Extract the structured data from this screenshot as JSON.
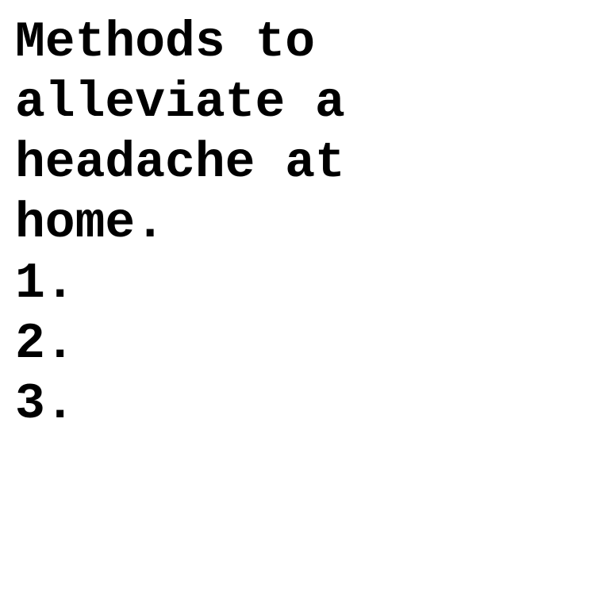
{
  "document": {
    "title_lines": [
      "Methods to",
      "alleviate a",
      "headache at",
      "home."
    ],
    "list_items": [
      "1.",
      "2.",
      "3."
    ],
    "colors": {
      "text": "#000000",
      "background": "#ffffff"
    }
  }
}
